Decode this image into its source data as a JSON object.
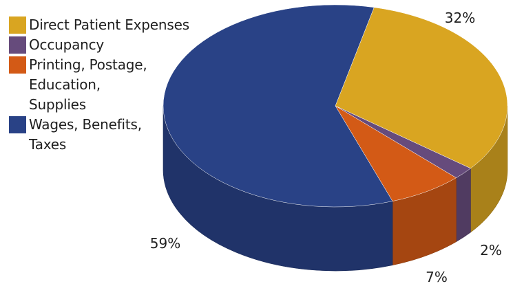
{
  "chart_data": {
    "type": "pie",
    "title": "",
    "categories": [
      "Direct Patient Expenses",
      "Occupancy",
      "Printing, Postage,\nEducation,\nSupplies",
      "Wages, Benefits,\nTaxes"
    ],
    "values": [
      32,
      2,
      7,
      59
    ],
    "labels": [
      "32%",
      "2%",
      "7%",
      "59%"
    ],
    "colors": [
      "#d9a521",
      "#664b7c",
      "#d35a16",
      "#294286"
    ],
    "style": "3d",
    "legend_position": "top-left"
  }
}
